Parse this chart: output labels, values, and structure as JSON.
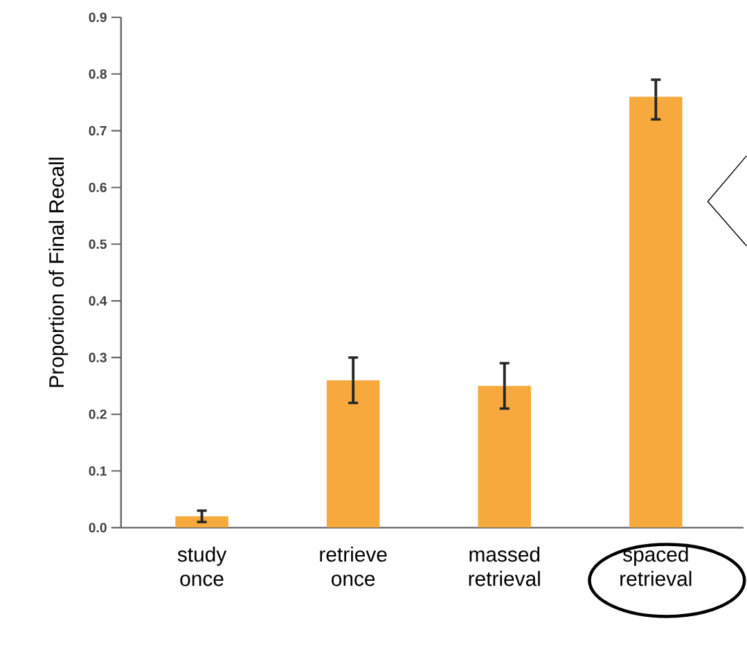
{
  "chart_data": {
    "type": "bar",
    "ylabel": "Proportion of Final Recall",
    "categories": [
      "study once",
      "retrieve once",
      "massed retrieval",
      "spaced retrieval"
    ],
    "values": [
      0.02,
      0.26,
      0.25,
      0.76
    ],
    "errors": [
      [
        0.01,
        0.03
      ],
      [
        0.22,
        0.3
      ],
      [
        0.21,
        0.29
      ],
      [
        0.72,
        0.79
      ]
    ],
    "color": "#f7a93e",
    "ylim": [
      0,
      0.9
    ],
    "yticks": [
      {
        "value": 0,
        "label": "0.0"
      },
      {
        "value": 0.1,
        "label": "0.1"
      },
      {
        "value": 0.2,
        "label": "0.2"
      },
      {
        "value": 0.3,
        "label": "0.3"
      },
      {
        "value": 0.4,
        "label": "0.4"
      },
      {
        "value": 0.5,
        "label": "0.5"
      },
      {
        "value": 0.6,
        "label": "0.6"
      },
      {
        "value": 0.7,
        "label": "0.7"
      },
      {
        "value": 0.8,
        "label": "0.8"
      },
      {
        "value": 0.9,
        "label": "0.9"
      }
    ],
    "grid": false
  }
}
